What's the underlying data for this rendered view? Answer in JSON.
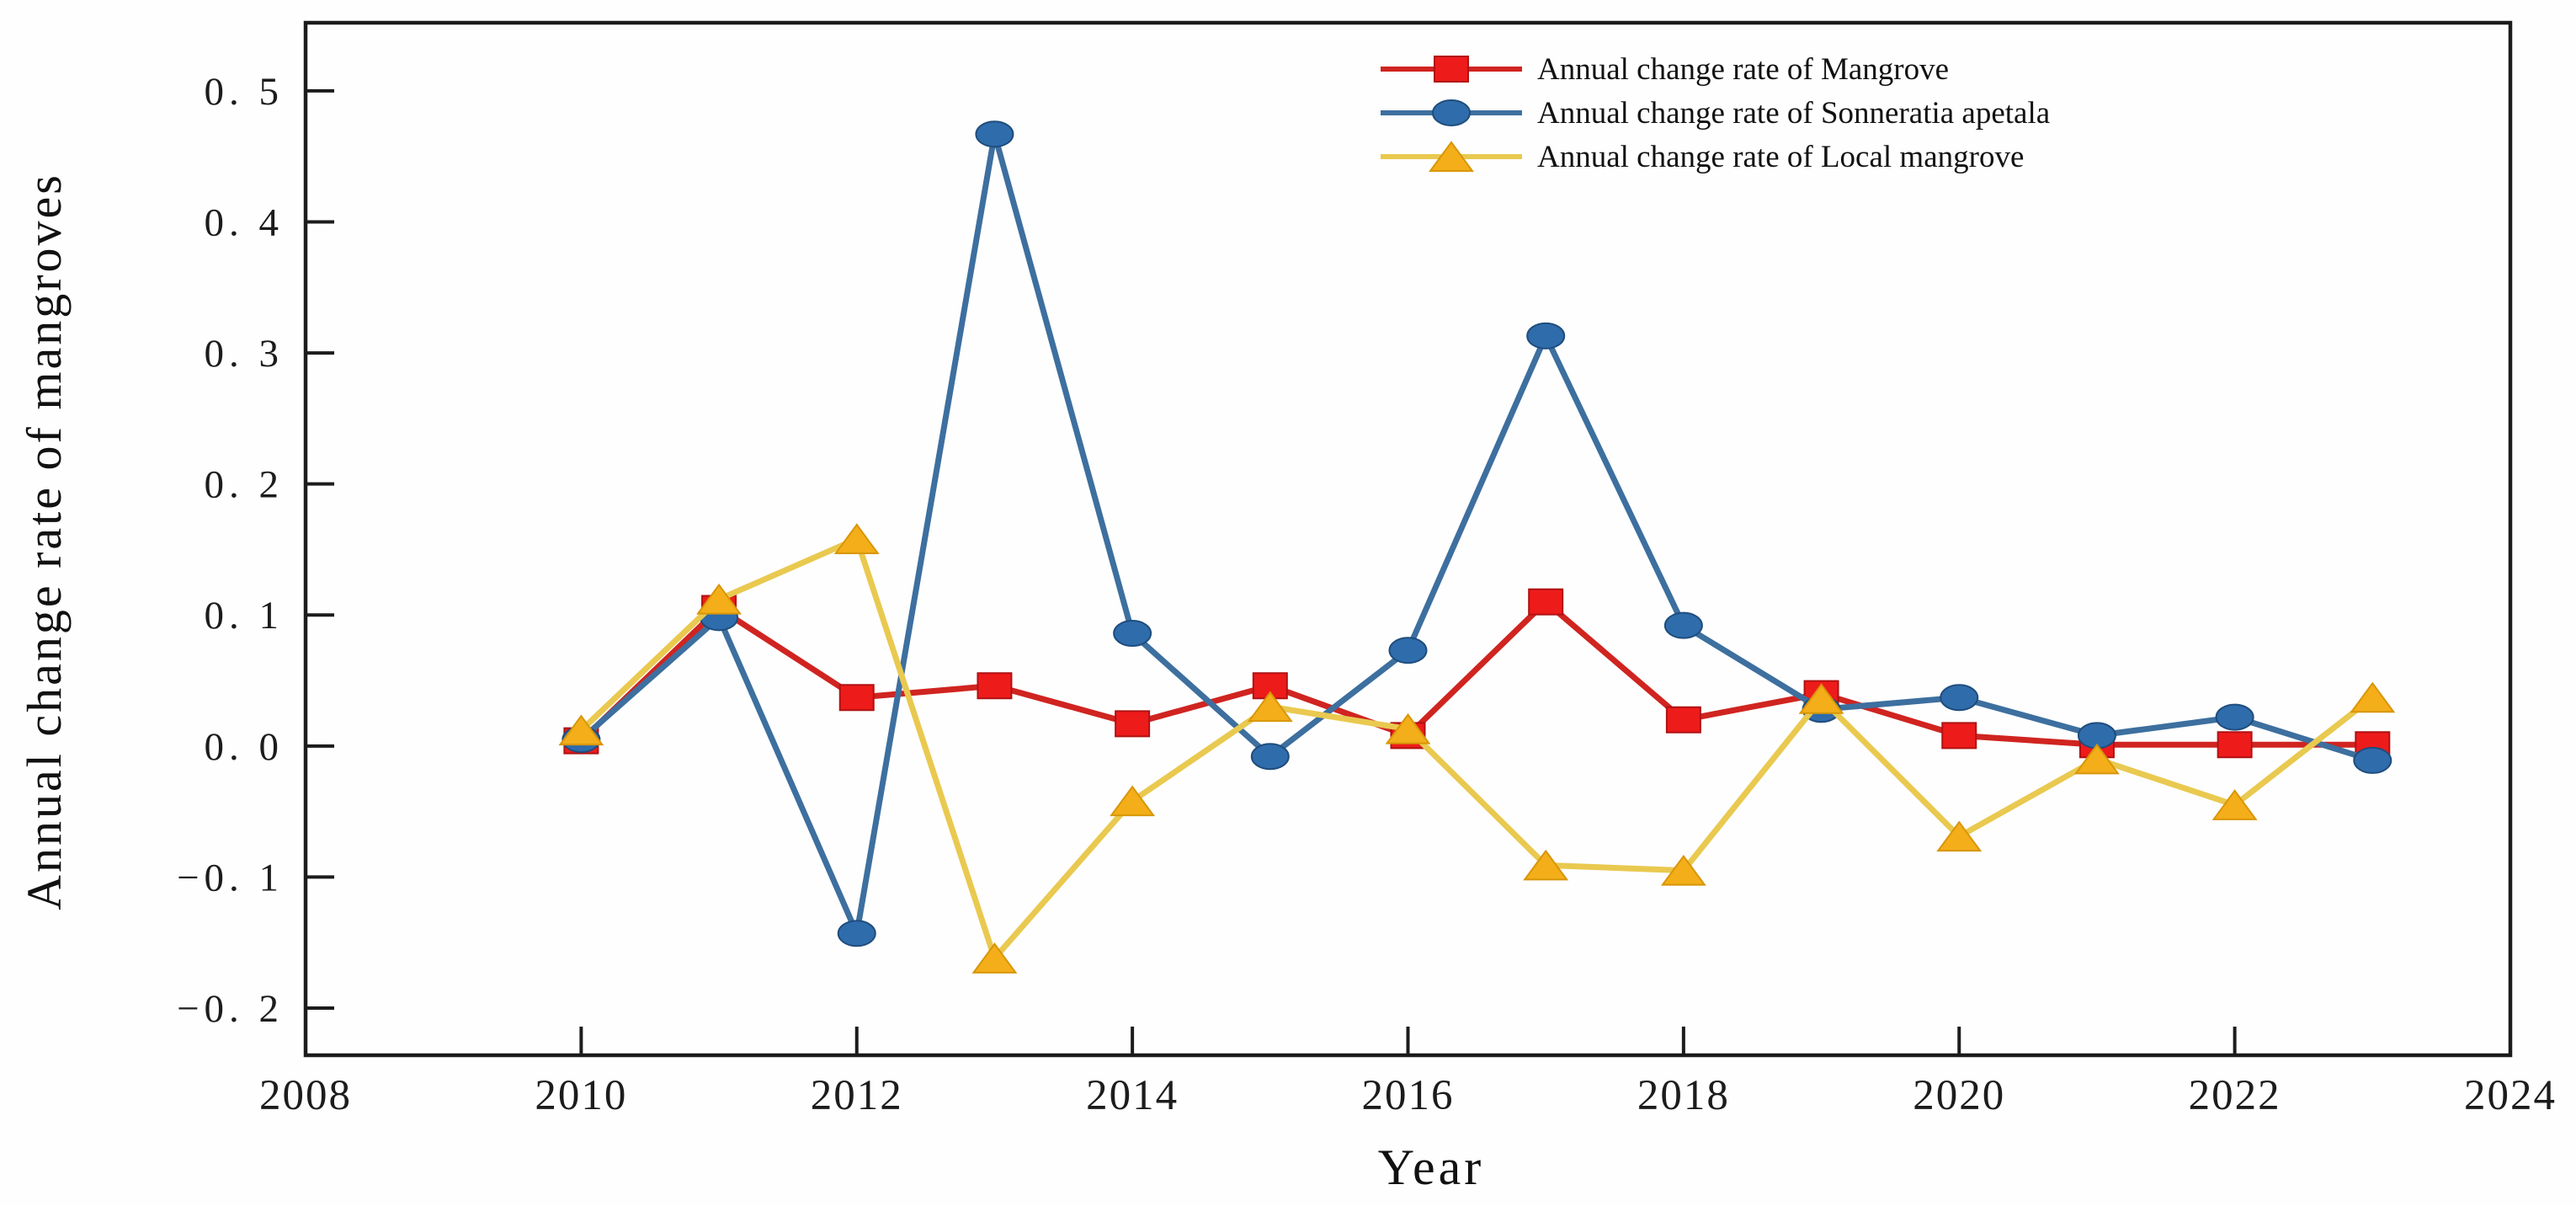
{
  "chart_data": {
    "type": "line",
    "title": "",
    "xlabel": "Year",
    "ylabel": "Annual change rate of mangroves",
    "x": [
      2010,
      2011,
      2012,
      2013,
      2014,
      2015,
      2016,
      2017,
      2018,
      2019,
      2020,
      2021,
      2022,
      2023
    ],
    "series": [
      {
        "name": "Annual change rate of Mangrove",
        "marker": "square",
        "line_color": "#d02420",
        "marker_color": "#ee1b1b",
        "marker_edge": "#b01212",
        "values": [
          0.004,
          0.105,
          0.037,
          0.046,
          0.017,
          0.046,
          0.008,
          0.11,
          0.02,
          0.04,
          0.008,
          0.001,
          0.001,
          0.001
        ]
      },
      {
        "name": "Annual change rate of Sonneratia apetala",
        "marker": "circle",
        "line_color": "#3d6f9f",
        "marker_color": "#2f6cab",
        "marker_edge": "#1f4d7d",
        "values": [
          0.005,
          0.098,
          -0.143,
          0.467,
          0.086,
          -0.008,
          0.073,
          0.313,
          0.092,
          0.028,
          0.037,
          0.008,
          0.022,
          -0.011
        ]
      },
      {
        "name": "Annual change rate of Local mangrove",
        "marker": "triangle",
        "line_color": "#e9c94f",
        "marker_color": "#f3ae19",
        "marker_edge": "#d89608",
        "values": [
          0.012,
          0.112,
          0.158,
          -0.162,
          -0.042,
          0.03,
          0.013,
          -0.091,
          -0.095,
          0.036,
          -0.069,
          -0.01,
          -0.045,
          0.037
        ]
      }
    ],
    "xlim": [
      2008,
      2024
    ],
    "ylim": [
      -0.236,
      0.552
    ],
    "x_ticks": [
      2008,
      2010,
      2012,
      2014,
      2016,
      2018,
      2020,
      2022,
      2024
    ],
    "x_tick_labels": [
      "2008",
      "2010",
      "2012",
      "2014",
      "2016",
      "2018",
      "2020",
      "2022",
      "2024"
    ],
    "y_ticks": [
      0.5,
      0.4,
      0.3,
      0.2,
      0.1,
      0.0,
      -0.1,
      -0.2
    ],
    "y_tick_labels": [
      "0. 5",
      "0. 4",
      "0. 3",
      "0. 2",
      "0. 1",
      "0. 0",
      "−0. 1",
      "−0. 2"
    ],
    "grid": false,
    "legend_position": "top-right",
    "frame_color": "#1c1c1c",
    "background_color": "#fefefe"
  }
}
